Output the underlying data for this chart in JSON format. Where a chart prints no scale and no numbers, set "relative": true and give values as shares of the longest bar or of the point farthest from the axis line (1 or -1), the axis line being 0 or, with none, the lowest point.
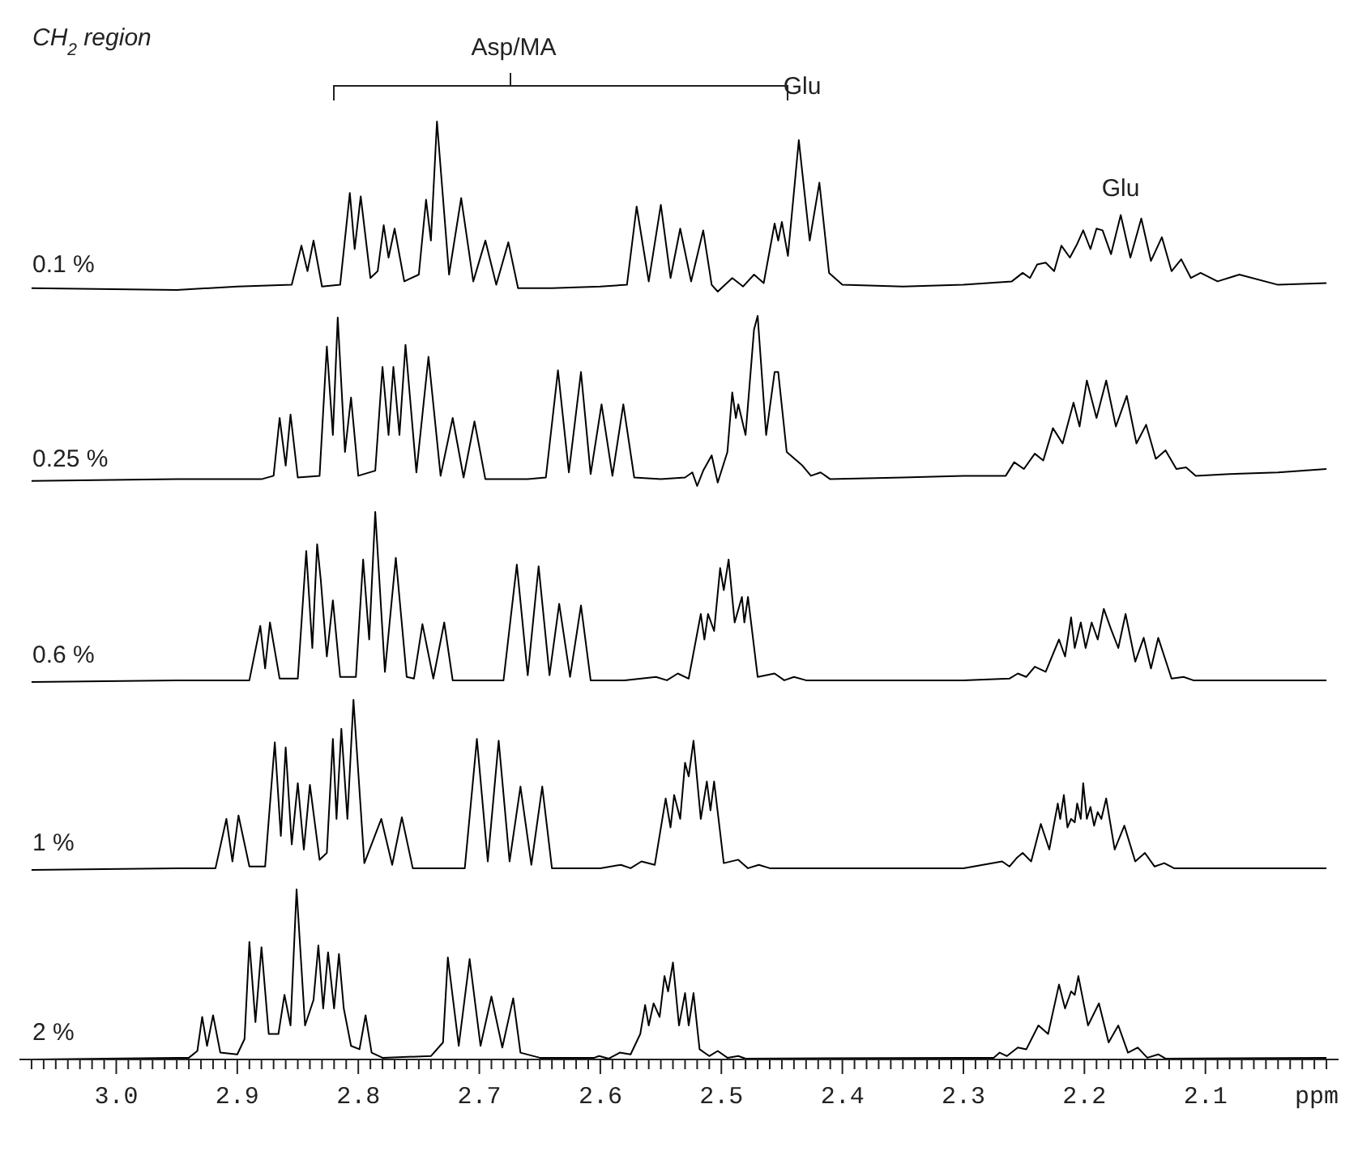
{
  "chart_data": [
    {
      "type": "line",
      "title": "CH$_{2}$ region",
      "relative": true,
      "xlim": [
        3.08,
        1.99
      ],
      "tick_labels": false,
      "annotations": [
        "Asp/MA",
        "Glu",
        {
          "text": "Glu",
          "x": 2.17,
          "y": 0.45
        }
      ],
      "x": [
        3.07,
        2.95,
        2.9,
        2.855,
        2.847,
        2.842,
        2.837,
        2.83,
        2.815,
        2.807,
        2.803,
        2.798,
        2.79,
        2.784,
        2.779,
        2.775,
        2.77,
        2.762,
        2.75,
        2.744,
        2.74,
        2.735,
        2.725,
        2.715,
        2.705,
        2.695,
        2.686,
        2.676,
        2.668,
        2.64,
        2.6,
        2.578,
        2.57,
        2.56,
        2.55,
        2.542,
        2.534,
        2.525,
        2.515,
        2.508,
        2.503,
        2.491,
        2.482,
        2.473,
        2.465,
        2.456,
        2.453,
        2.45,
        2.445,
        2.436,
        2.427,
        2.419,
        2.411,
        2.4,
        2.35,
        2.3,
        2.26,
        2.251,
        2.245,
        2.239,
        2.232,
        2.225,
        2.219,
        2.212,
        2.206,
        2.201,
        2.195,
        2.19,
        2.185,
        2.178,
        2.17,
        2.162,
        2.153,
        2.145,
        2.136,
        2.128,
        2.12,
        2.112,
        2.104,
        2.09,
        2.072,
        2.04,
        2.0
      ],
      "series": [
        {
          "name": "0.1 %",
          "color": "#000000",
          "values": [
            0.02,
            0.01,
            0.03,
            0.04,
            0.27,
            0.12,
            0.3,
            0.03,
            0.04,
            0.58,
            0.25,
            0.56,
            0.08,
            0.12,
            0.39,
            0.2,
            0.37,
            0.06,
            0.1,
            0.54,
            0.3,
            1.0,
            0.1,
            0.55,
            0.06,
            0.3,
            0.04,
            0.29,
            0.02,
            0.02,
            0.03,
            0.04,
            0.5,
            0.06,
            0.51,
            0.08,
            0.37,
            0.06,
            0.36,
            0.04,
            0.0,
            0.08,
            0.03,
            0.1,
            0.05,
            0.4,
            0.3,
            0.41,
            0.21,
            0.89,
            0.3,
            0.64,
            0.11,
            0.04,
            0.03,
            0.04,
            0.06,
            0.11,
            0.08,
            0.16,
            0.17,
            0.12,
            0.27,
            0.2,
            0.28,
            0.36,
            0.25,
            0.37,
            0.36,
            0.22,
            0.45,
            0.2,
            0.43,
            0.18,
            0.32,
            0.12,
            0.19,
            0.08,
            0.11,
            0.06,
            0.1,
            0.04,
            0.05
          ]
        }
      ]
    },
    {
      "type": "line",
      "relative": true,
      "xlim": [
        3.08,
        1.99
      ],
      "tick_labels": false,
      "x": [
        3.07,
        2.95,
        2.88,
        2.87,
        2.865,
        2.86,
        2.856,
        2.85,
        2.832,
        2.826,
        2.821,
        2.817,
        2.811,
        2.806,
        2.8,
        2.786,
        2.78,
        2.775,
        2.771,
        2.766,
        2.761,
        2.752,
        2.742,
        2.732,
        2.722,
        2.713,
        2.704,
        2.695,
        2.66,
        2.645,
        2.635,
        2.626,
        2.616,
        2.608,
        2.599,
        2.59,
        2.581,
        2.572,
        2.55,
        2.53,
        2.524,
        2.52,
        2.515,
        2.508,
        2.503,
        2.495,
        2.491,
        2.488,
        2.486,
        2.48,
        2.473,
        2.47,
        2.463,
        2.456,
        2.453,
        2.446,
        2.433,
        2.426,
        2.418,
        2.41,
        2.35,
        2.3,
        2.265,
        2.258,
        2.25,
        2.241,
        2.234,
        2.226,
        2.218,
        2.209,
        2.204,
        2.198,
        2.19,
        2.182,
        2.174,
        2.165,
        2.157,
        2.149,
        2.141,
        2.133,
        2.124,
        2.116,
        2.108,
        2.08,
        2.04,
        2.0
      ],
      "series": [
        {
          "name": "0.25 %",
          "color": "#000000",
          "values": [
            0.03,
            0.04,
            0.04,
            0.06,
            0.4,
            0.12,
            0.42,
            0.05,
            0.06,
            0.82,
            0.3,
            0.99,
            0.2,
            0.52,
            0.06,
            0.09,
            0.7,
            0.3,
            0.7,
            0.3,
            0.83,
            0.08,
            0.76,
            0.06,
            0.4,
            0.05,
            0.38,
            0.04,
            0.04,
            0.05,
            0.68,
            0.08,
            0.67,
            0.07,
            0.48,
            0.06,
            0.48,
            0.05,
            0.04,
            0.05,
            0.08,
            0.0,
            0.09,
            0.18,
            0.02,
            0.2,
            0.55,
            0.4,
            0.48,
            0.3,
            0.92,
            1.0,
            0.3,
            0.67,
            0.67,
            0.2,
            0.12,
            0.06,
            0.08,
            0.04,
            0.05,
            0.06,
            0.06,
            0.14,
            0.1,
            0.19,
            0.15,
            0.34,
            0.25,
            0.49,
            0.35,
            0.62,
            0.4,
            0.62,
            0.35,
            0.53,
            0.25,
            0.36,
            0.16,
            0.21,
            0.1,
            0.11,
            0.06,
            0.07,
            0.08,
            0.1
          ]
        }
      ]
    },
    {
      "type": "line",
      "relative": true,
      "xlim": [
        3.08,
        1.99
      ],
      "tick_labels": false,
      "x": [
        3.07,
        2.95,
        2.89,
        2.881,
        2.877,
        2.873,
        2.865,
        2.85,
        2.843,
        2.838,
        2.834,
        2.831,
        2.826,
        2.821,
        2.815,
        2.802,
        2.796,
        2.791,
        2.786,
        2.778,
        2.769,
        2.76,
        2.754,
        2.747,
        2.738,
        2.729,
        2.722,
        2.68,
        2.669,
        2.66,
        2.651,
        2.642,
        2.634,
        2.625,
        2.616,
        2.608,
        2.58,
        2.554,
        2.545,
        2.536,
        2.527,
        2.517,
        2.514,
        2.511,
        2.506,
        2.501,
        2.498,
        2.494,
        2.489,
        2.483,
        2.481,
        2.478,
        2.47,
        2.456,
        2.448,
        2.44,
        2.43,
        2.3,
        2.262,
        2.255,
        2.248,
        2.241,
        2.232,
        2.221,
        2.216,
        2.211,
        2.208,
        2.205,
        2.203,
        2.199,
        2.194,
        2.189,
        2.184,
        2.178,
        2.172,
        2.166,
        2.158,
        2.151,
        2.145,
        2.139,
        2.128,
        2.118,
        2.11,
        2.05,
        2.0
      ],
      "series": [
        {
          "name": "0.6 %",
          "color": "#000000",
          "values": [
            0.0,
            0.01,
            0.01,
            0.33,
            0.08,
            0.35,
            0.02,
            0.02,
            0.77,
            0.2,
            0.81,
            0.6,
            0.15,
            0.48,
            0.03,
            0.03,
            0.72,
            0.25,
            1.0,
            0.06,
            0.73,
            0.03,
            0.02,
            0.34,
            0.02,
            0.35,
            0.01,
            0.01,
            0.69,
            0.04,
            0.68,
            0.04,
            0.46,
            0.03,
            0.45,
            0.01,
            0.01,
            0.03,
            0.01,
            0.05,
            0.02,
            0.4,
            0.25,
            0.4,
            0.3,
            0.67,
            0.54,
            0.72,
            0.35,
            0.5,
            0.35,
            0.5,
            0.03,
            0.05,
            0.01,
            0.03,
            0.01,
            0.01,
            0.02,
            0.05,
            0.03,
            0.09,
            0.06,
            0.25,
            0.15,
            0.38,
            0.2,
            0.29,
            0.35,
            0.2,
            0.35,
            0.25,
            0.43,
            0.31,
            0.2,
            0.4,
            0.12,
            0.26,
            0.08,
            0.26,
            0.02,
            0.03,
            0.01,
            0.01,
            0.01
          ]
        }
      ]
    },
    {
      "type": "line",
      "relative": true,
      "xlim": [
        3.08,
        1.99
      ],
      "tick_labels": false,
      "x": [
        3.07,
        2.95,
        2.918,
        2.909,
        2.904,
        2.899,
        2.89,
        2.877,
        2.869,
        2.864,
        2.86,
        2.855,
        2.85,
        2.845,
        2.84,
        2.832,
        2.826,
        2.821,
        2.818,
        2.814,
        2.809,
        2.804,
        2.795,
        2.781,
        2.772,
        2.764,
        2.755,
        2.712,
        2.702,
        2.693,
        2.684,
        2.675,
        2.666,
        2.657,
        2.648,
        2.64,
        2.6,
        2.583,
        2.575,
        2.566,
        2.555,
        2.546,
        2.542,
        2.539,
        2.534,
        2.53,
        2.527,
        2.523,
        2.517,
        2.512,
        2.509,
        2.506,
        2.498,
        2.486,
        2.478,
        2.469,
        2.46,
        2.3,
        2.268,
        2.262,
        2.256,
        2.251,
        2.244,
        2.236,
        2.229,
        2.222,
        2.22,
        2.217,
        2.214,
        2.211,
        2.208,
        2.206,
        2.203,
        2.201,
        2.198,
        2.195,
        2.192,
        2.189,
        2.186,
        2.182,
        2.175,
        2.167,
        2.158,
        2.15,
        2.142,
        2.134,
        2.126,
        2.05,
        2.0
      ],
      "series": [
        {
          "name": "1 %",
          "color": "#000000",
          "values": [
            0.0,
            0.01,
            0.01,
            0.3,
            0.05,
            0.32,
            0.02,
            0.02,
            0.75,
            0.2,
            0.72,
            0.15,
            0.51,
            0.12,
            0.5,
            0.06,
            0.1,
            0.77,
            0.3,
            0.83,
            0.3,
            1.0,
            0.04,
            0.3,
            0.03,
            0.31,
            0.01,
            0.01,
            0.77,
            0.05,
            0.76,
            0.05,
            0.49,
            0.03,
            0.49,
            0.01,
            0.01,
            0.03,
            0.01,
            0.05,
            0.03,
            0.42,
            0.25,
            0.44,
            0.3,
            0.63,
            0.55,
            0.76,
            0.3,
            0.52,
            0.35,
            0.52,
            0.04,
            0.06,
            0.01,
            0.03,
            0.01,
            0.01,
            0.05,
            0.02,
            0.07,
            0.1,
            0.05,
            0.27,
            0.12,
            0.39,
            0.3,
            0.44,
            0.25,
            0.3,
            0.28,
            0.39,
            0.3,
            0.51,
            0.3,
            0.37,
            0.26,
            0.34,
            0.3,
            0.42,
            0.12,
            0.26,
            0.05,
            0.1,
            0.02,
            0.04,
            0.01,
            0.01,
            0.01
          ]
        }
      ]
    },
    {
      "type": "line",
      "relative": true,
      "xlim": [
        3.08,
        1.99
      ],
      "tick_labels": "x",
      "xlabel": "ppm",
      "xticks": [
        {
          "value": 3.07,
          "label": null
        },
        {
          "value": 3.06,
          "label": null
        },
        {
          "value": 3.05,
          "label": null
        },
        {
          "value": 3.04,
          "label": null
        },
        {
          "value": 3.03,
          "label": null
        },
        {
          "value": 3.02,
          "label": null
        },
        {
          "value": 3.01,
          "label": null
        },
        {
          "value": 3.0,
          "label": "3.0"
        },
        {
          "value": 2.99,
          "label": null
        },
        {
          "value": 2.98,
          "label": null
        },
        {
          "value": 2.97,
          "label": null
        },
        {
          "value": 2.96,
          "label": null
        },
        {
          "value": 2.95,
          "label": null
        },
        {
          "value": 2.94,
          "label": null
        },
        {
          "value": 2.93,
          "label": null
        },
        {
          "value": 2.92,
          "label": null
        },
        {
          "value": 2.91,
          "label": null
        },
        {
          "value": 2.9,
          "label": "2.9"
        },
        {
          "value": 2.89,
          "label": null
        },
        {
          "value": 2.88,
          "label": null
        },
        {
          "value": 2.87,
          "label": null
        },
        {
          "value": 2.86,
          "label": null
        },
        {
          "value": 2.85,
          "label": null
        },
        {
          "value": 2.84,
          "label": null
        },
        {
          "value": 2.83,
          "label": null
        },
        {
          "value": 2.82,
          "label": null
        },
        {
          "value": 2.81,
          "label": null
        },
        {
          "value": 2.8,
          "label": "2.8"
        },
        {
          "value": 2.79,
          "label": null
        },
        {
          "value": 2.78,
          "label": null
        },
        {
          "value": 2.77,
          "label": null
        },
        {
          "value": 2.76,
          "label": null
        },
        {
          "value": 2.75,
          "label": null
        },
        {
          "value": 2.74,
          "label": null
        },
        {
          "value": 2.73,
          "label": null
        },
        {
          "value": 2.72,
          "label": null
        },
        {
          "value": 2.71,
          "label": null
        },
        {
          "value": 2.7,
          "label": "2.7"
        },
        {
          "value": 2.69,
          "label": null
        },
        {
          "value": 2.68,
          "label": null
        },
        {
          "value": 2.67,
          "label": null
        },
        {
          "value": 2.66,
          "label": null
        },
        {
          "value": 2.65,
          "label": null
        },
        {
          "value": 2.64,
          "label": null
        },
        {
          "value": 2.63,
          "label": null
        },
        {
          "value": 2.62,
          "label": null
        },
        {
          "value": 2.61,
          "label": null
        },
        {
          "value": 2.6,
          "label": "2.6"
        },
        {
          "value": 2.59,
          "label": null
        },
        {
          "value": 2.58,
          "label": null
        },
        {
          "value": 2.57,
          "label": null
        },
        {
          "value": 2.56,
          "label": null
        },
        {
          "value": 2.55,
          "label": null
        },
        {
          "value": 2.54,
          "label": null
        },
        {
          "value": 2.53,
          "label": null
        },
        {
          "value": 2.52,
          "label": null
        },
        {
          "value": 2.51,
          "label": null
        },
        {
          "value": 2.5,
          "label": "2.5"
        },
        {
          "value": 2.49,
          "label": null
        },
        {
          "value": 2.48,
          "label": null
        },
        {
          "value": 2.47,
          "label": null
        },
        {
          "value": 2.46,
          "label": null
        },
        {
          "value": 2.45,
          "label": null
        },
        {
          "value": 2.44,
          "label": null
        },
        {
          "value": 2.43,
          "label": null
        },
        {
          "value": 2.42,
          "label": null
        },
        {
          "value": 2.41,
          "label": null
        },
        {
          "value": 2.4,
          "label": "2.4"
        },
        {
          "value": 2.39,
          "label": null
        },
        {
          "value": 2.38,
          "label": null
        },
        {
          "value": 2.37,
          "label": null
        },
        {
          "value": 2.36,
          "label": null
        },
        {
          "value": 2.35,
          "label": null
        },
        {
          "value": 2.34,
          "label": null
        },
        {
          "value": 2.33,
          "label": null
        },
        {
          "value": 2.32,
          "label": null
        },
        {
          "value": 2.31,
          "label": null
        },
        {
          "value": 2.3,
          "label": "2.3"
        },
        {
          "value": 2.29,
          "label": null
        },
        {
          "value": 2.28,
          "label": null
        },
        {
          "value": 2.27,
          "label": null
        },
        {
          "value": 2.26,
          "label": null
        },
        {
          "value": 2.25,
          "label": null
        },
        {
          "value": 2.24,
          "label": null
        },
        {
          "value": 2.23,
          "label": null
        },
        {
          "value": 2.22,
          "label": null
        },
        {
          "value": 2.21,
          "label": null
        },
        {
          "value": 2.2,
          "label": "2.2"
        },
        {
          "value": 2.19,
          "label": null
        },
        {
          "value": 2.18,
          "label": null
        },
        {
          "value": 2.17,
          "label": null
        },
        {
          "value": 2.16,
          "label": null
        },
        {
          "value": 2.15,
          "label": null
        },
        {
          "value": 2.14,
          "label": null
        },
        {
          "value": 2.13,
          "label": null
        },
        {
          "value": 2.12,
          "label": null
        },
        {
          "value": 2.11,
          "label": null
        },
        {
          "value": 2.1,
          "label": "2.1"
        },
        {
          "value": 2.09,
          "label": null
        },
        {
          "value": 2.08,
          "label": null
        },
        {
          "value": 2.07,
          "label": null
        },
        {
          "value": 2.06,
          "label": null
        },
        {
          "value": 2.05,
          "label": null
        },
        {
          "value": 2.04,
          "label": null
        },
        {
          "value": 2.03,
          "label": null
        },
        {
          "value": 2.02,
          "label": null
        },
        {
          "value": 2.01,
          "label": null
        },
        {
          "value": 2.0,
          "label": null
        }
      ],
      "x": [
        3.07,
        2.95,
        2.94,
        2.933,
        2.929,
        2.925,
        2.92,
        2.914,
        2.9,
        2.894,
        2.89,
        2.885,
        2.88,
        2.874,
        2.866,
        2.861,
        2.856,
        2.851,
        2.844,
        2.837,
        2.833,
        2.829,
        2.825,
        2.82,
        2.816,
        2.812,
        2.806,
        2.799,
        2.794,
        2.789,
        2.78,
        2.74,
        2.73,
        2.726,
        2.717,
        2.708,
        2.699,
        2.69,
        2.681,
        2.672,
        2.666,
        2.65,
        2.605,
        2.601,
        2.593,
        2.584,
        2.575,
        2.567,
        2.563,
        2.56,
        2.556,
        2.551,
        2.547,
        2.544,
        2.54,
        2.535,
        2.53,
        2.527,
        2.523,
        2.518,
        2.51,
        2.503,
        2.495,
        2.486,
        2.48,
        2.3,
        2.275,
        2.27,
        2.264,
        2.255,
        2.248,
        2.238,
        2.23,
        2.221,
        2.216,
        2.211,
        2.208,
        2.205,
        2.197,
        2.188,
        2.18,
        2.172,
        2.164,
        2.156,
        2.148,
        2.139,
        2.133,
        2.0
      ],
      "series": [
        {
          "name": "2 %",
          "color": "#000000",
          "values": [
            0.0,
            0.01,
            0.01,
            0.05,
            0.25,
            0.08,
            0.26,
            0.04,
            0.03,
            0.12,
            0.69,
            0.22,
            0.66,
            0.15,
            0.15,
            0.38,
            0.2,
            1.0,
            0.2,
            0.35,
            0.67,
            0.3,
            0.63,
            0.3,
            0.62,
            0.3,
            0.08,
            0.06,
            0.26,
            0.04,
            0.01,
            0.02,
            0.1,
            0.6,
            0.08,
            0.59,
            0.08,
            0.37,
            0.07,
            0.36,
            0.04,
            0.01,
            0.01,
            0.02,
            0.005,
            0.04,
            0.03,
            0.15,
            0.32,
            0.2,
            0.33,
            0.25,
            0.49,
            0.4,
            0.57,
            0.2,
            0.39,
            0.2,
            0.39,
            0.06,
            0.02,
            0.05,
            0.01,
            0.02,
            0.005,
            0.01,
            0.01,
            0.04,
            0.02,
            0.07,
            0.06,
            0.2,
            0.15,
            0.44,
            0.3,
            0.4,
            0.38,
            0.49,
            0.2,
            0.33,
            0.1,
            0.2,
            0.04,
            0.07,
            0.01,
            0.03,
            0.005,
            0.01
          ]
        }
      ]
    }
  ]
}
